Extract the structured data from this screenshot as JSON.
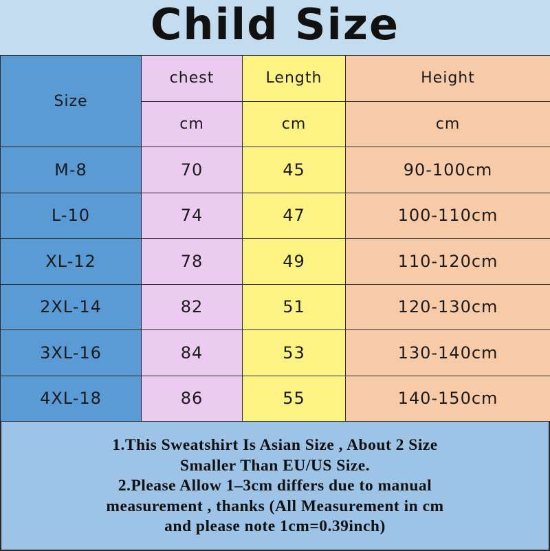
{
  "title": "Child Size",
  "header": {
    "size": "Size",
    "chest": "chest",
    "length": "Length",
    "height": "Height",
    "unit": "cm"
  },
  "rows": [
    {
      "size": "M-8",
      "chest": "70",
      "length": "45",
      "height": "90-100cm"
    },
    {
      "size": "L-10",
      "chest": "74",
      "length": "47",
      "height": "100-110cm"
    },
    {
      "size": "XL-12",
      "chest": "78",
      "length": "49",
      "height": "110-120cm"
    },
    {
      "size": "2XL-14",
      "chest": "82",
      "length": "51",
      "height": "120-130cm"
    },
    {
      "size": "3XL-16",
      "chest": "84",
      "length": "53",
      "height": "130-140cm"
    },
    {
      "size": "4XL-18",
      "chest": "86",
      "length": "55",
      "height": "140-150cm"
    }
  ],
  "notes": [
    "1.This Sweatshirt Is Asian Size , About 2 Size",
    "Smaller Than EU/US Size.",
    "2.Please Allow 1–3cm differs due to manual",
    "measurement , thanks (All Measurement in cm",
    "and please note 1cm=0.39inch)"
  ],
  "colors": {
    "size_col": "#5b9bd5",
    "chest_col": "#eccbf0",
    "length_col": "#fdf384",
    "height_col": "#f8cba8",
    "notes_bg": "#9dc3e6",
    "title_bg": "#c3dcf0"
  }
}
